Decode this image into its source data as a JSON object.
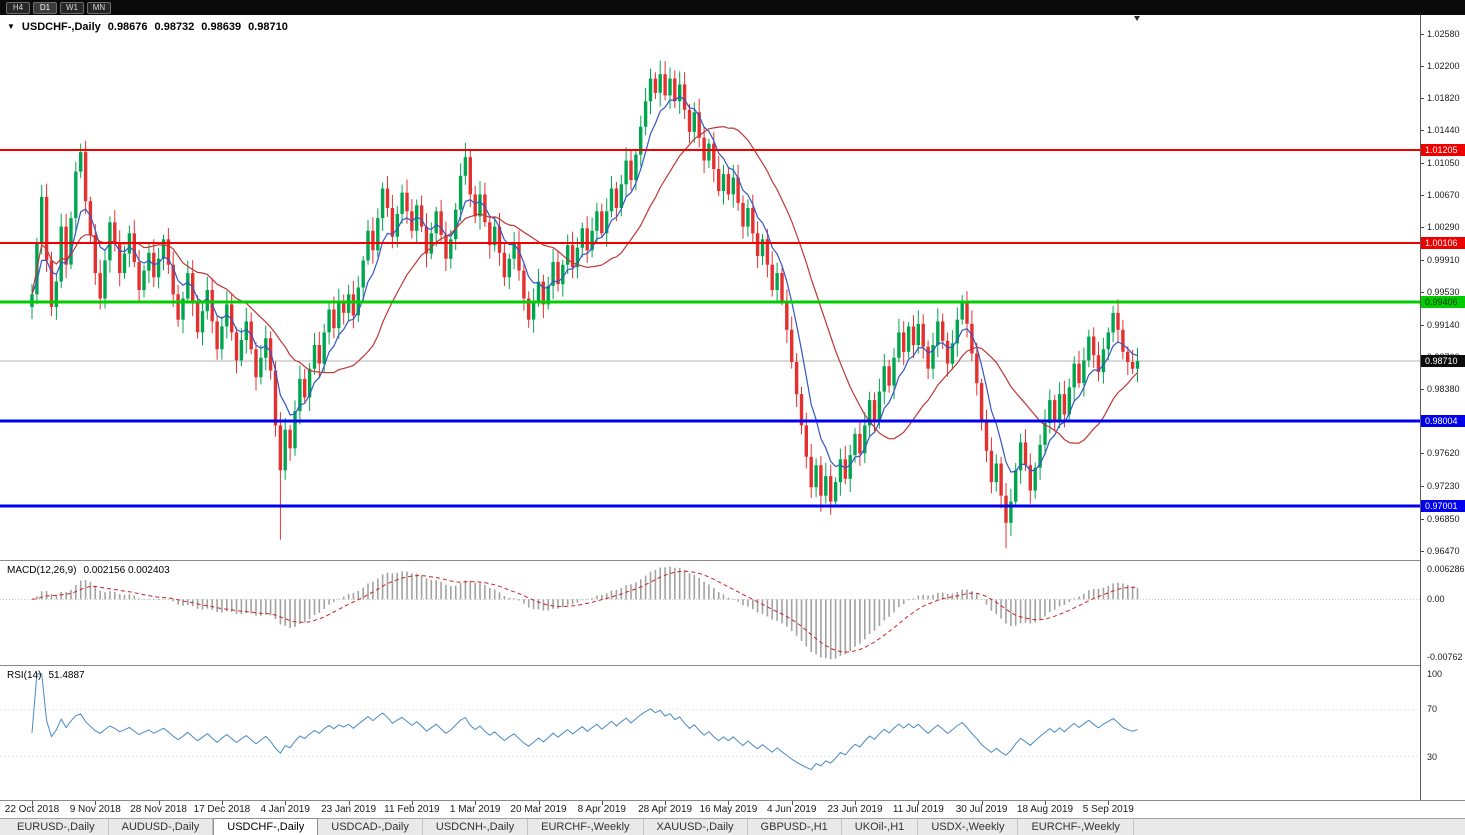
{
  "toolbar": {
    "buttons": [
      "H4",
      "D1",
      "W1",
      "MN"
    ],
    "active": "D1"
  },
  "tabs": [
    {
      "label": "EURUSD-,Daily",
      "active": false
    },
    {
      "label": "AUDUSD-,Daily",
      "active": false
    },
    {
      "label": "USDCHF-,Daily",
      "active": true
    },
    {
      "label": "USDCAD-,Daily",
      "active": false
    },
    {
      "label": "USDCNH-,Daily",
      "active": false
    },
    {
      "label": "EURCHF-,Weekly",
      "active": false
    },
    {
      "label": "XAUUSD-,Daily",
      "active": false
    },
    {
      "label": "GBPUSD-,H1",
      "active": false
    },
    {
      "label": "UKOil-,H1",
      "active": false
    },
    {
      "label": "USDX-,Weekly",
      "active": false
    },
    {
      "label": "EURCHF-,Weekly",
      "active": false
    }
  ],
  "chart_data": {
    "type": "candlestick",
    "symbol": "USDCHF-,Daily",
    "ohlc_current": {
      "open": "0.98676",
      "high": "0.98732",
      "low": "0.98639",
      "close": "0.98710"
    },
    "price_axis_ticks": [
      "1.02580",
      "1.02200",
      "1.01820",
      "1.01440",
      "1.01050",
      "1.00670",
      "1.00290",
      "0.99910",
      "0.99530",
      "0.99140",
      "0.98760",
      "0.98380",
      "0.98000",
      "0.97620",
      "0.97230",
      "0.96850",
      "0.96470"
    ],
    "price_min": 0.9636,
    "price_max": 1.028,
    "levels": [
      {
        "price": 1.01205,
        "label": "1.01205",
        "color": "#ee0000",
        "width": 2
      },
      {
        "price": 1.00106,
        "label": "1.00106",
        "color": "#ee0000",
        "width": 2
      },
      {
        "price": 0.99406,
        "label": "0.99406",
        "color": "#00cc00",
        "width": 3
      },
      {
        "price": 0.98004,
        "label": "0.98004",
        "color": "#0000ee",
        "width": 3
      },
      {
        "price": 0.97001,
        "label": "0.97001",
        "color": "#0000ee",
        "width": 3
      }
    ],
    "current_price": {
      "value": 0.9871,
      "label": "0.98710",
      "line_color": "#b4b4b4",
      "badge_bg": "#0c0c0c"
    },
    "date_labels": [
      "22 Oct 2018",
      "9 Nov 2018",
      "28 Nov 2018",
      "17 Dec 2018",
      "4 Jan 2019",
      "23 Jan 2019",
      "11 Feb 2019",
      "1 Mar 2019",
      "20 Mar 2019",
      "8 Apr 2019",
      "28 Apr 2019",
      "16 May 2019",
      "4 Jun 2019",
      "23 Jun 2019",
      "11 Jul 2019",
      "30 Jul 2019",
      "18 Aug 2019",
      "5 Sep 2019"
    ],
    "candles_per_label": 13,
    "first_open": 0.9935,
    "closes": [
      0.995,
      1.001,
      1.0065,
      0.999,
      0.9935,
      0.9965,
      1.003,
      0.9985,
      1.004,
      1.0095,
      1.0118,
      1.006,
      1.002,
      0.9975,
      0.9945,
      0.999,
      1.0035,
      1.001,
      0.9975,
      0.9998,
      1.0022,
      0.9988,
      0.9955,
      0.9978,
      0.9999,
      0.997,
      0.9992,
      1.0015,
      0.9985,
      0.995,
      0.992,
      0.9945,
      0.9975,
      0.994,
      0.9905,
      0.993,
      0.9955,
      0.9918,
      0.9885,
      0.9912,
      0.9938,
      0.9905,
      0.9872,
      0.9896,
      0.9918,
      0.9885,
      0.9852,
      0.9875,
      0.9898,
      0.986,
      0.9795,
      0.9742,
      0.979,
      0.9768,
      0.9812,
      0.985,
      0.9828,
      0.9862,
      0.989,
      0.9868,
      0.9905,
      0.9932,
      0.991,
      0.9942,
      0.9928,
      0.995,
      0.9925,
      0.9958,
      0.999,
      1.0025,
      1.0002,
      1.004,
      1.0075,
      1.0052,
      1.0018,
      1.0045,
      1.007,
      1.0048,
      1.0025,
      1.0055,
      1.003,
      0.9998,
      1.0022,
      1.0048,
      1.002,
      0.9992,
      1.0015,
      1.005,
      1.009,
      1.0112,
      1.0068,
      1.0042,
      1.0068,
      1.0035,
      1.0008,
      1.003,
      0.9999,
      0.997,
      0.9992,
      1.001,
      0.9978,
      0.9945,
      0.992,
      0.9942,
      0.9965,
      0.9938,
      0.996,
      0.9988,
      0.9962,
      0.9985,
      1.0008,
      0.9982,
      1.0005,
      1.0028,
      1.0002,
      1.0025,
      1.0048,
      1.0022,
      1.0048,
      1.0075,
      1.0052,
      1.008,
      1.0108,
      1.0085,
      1.0115,
      1.0148,
      1.0178,
      1.0205,
      1.0188,
      1.021,
      1.0185,
      1.0205,
      1.0178,
      1.0198,
      1.0168,
      1.0142,
      1.0165,
      1.0135,
      1.0108,
      1.0128,
      1.0098,
      1.0072,
      1.0092,
      1.0068,
      1.0088,
      1.0058,
      1.003,
      1.0052,
      1.0022,
      0.9995,
      1.0015,
      0.9985,
      0.9955,
      0.9975,
      0.9942,
      0.9908,
      0.987,
      0.9832,
      0.9795,
      0.9758,
      0.9722,
      0.9748,
      0.9712,
      0.9735,
      0.9705,
      0.9728,
      0.9755,
      0.9732,
      0.976,
      0.9785,
      0.9762,
      0.9795,
      0.9825,
      0.9802,
      0.9835,
      0.9865,
      0.9842,
      0.9875,
      0.9905,
      0.9882,
      0.9912,
      0.989,
      0.9915,
      0.9888,
      0.9862,
      0.989,
      0.9918,
      0.9895,
      0.9868,
      0.9892,
      0.992,
      0.9942,
      0.9915,
      0.988,
      0.9845,
      0.98,
      0.9765,
      0.9728,
      0.975,
      0.9712,
      0.968,
      0.9705,
      0.9742,
      0.9775,
      0.9748,
      0.9718,
      0.9745,
      0.9772,
      0.9798,
      0.9825,
      0.9802,
      0.9832,
      0.9808,
      0.984,
      0.9868,
      0.9845,
      0.9872,
      0.99,
      0.9878,
      0.9858,
      0.9885,
      0.9905,
      0.9928,
      0.9908,
      0.9882,
      0.987,
      0.9862,
      0.9871
    ],
    "wick_overrides": {
      "10": {
        "h": 1.0128
      },
      "51": {
        "l": 0.966
      },
      "89": {
        "h": 1.0129
      },
      "129": {
        "h": 1.0226
      },
      "131": {
        "h": 1.0218
      },
      "162": {
        "l": 0.9693
      },
      "200": {
        "l": 0.965
      },
      "222": {
        "h": 0.9936
      }
    },
    "colors": {
      "up": "#00a550",
      "down": "#e53030",
      "ma_fast": "#3355c4",
      "ma_slow": "#c03636",
      "macd_hist": "#a2a2a2",
      "macd_signal": "#cc2222",
      "rsi": "#4a8bc4"
    },
    "indicators": {
      "macd": {
        "label": "MACD(12,26,9)",
        "values": "0.002156 0.002403",
        "axis_labels": [
          "0.006286",
          "0.00",
          "-0.00762"
        ]
      },
      "rsi": {
        "label": "RSI(14)",
        "value": "51.4887",
        "axis_labels": [
          "100",
          "70",
          "30"
        ],
        "levels": [
          70,
          30
        ]
      }
    }
  }
}
